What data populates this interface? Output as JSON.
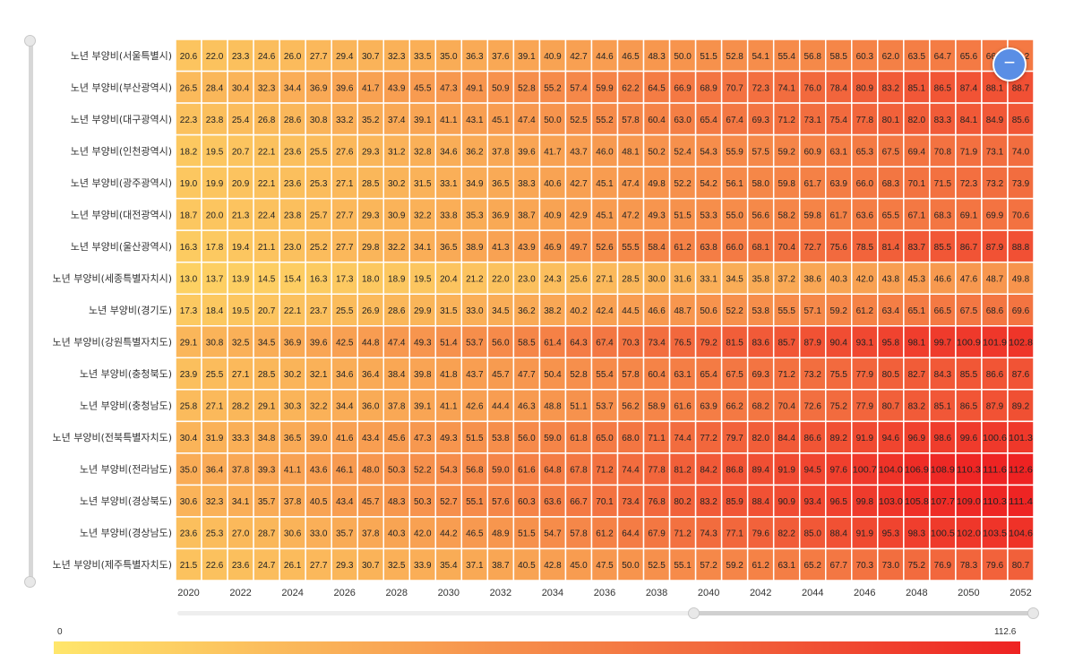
{
  "chart_data": {
    "type": "heatmap",
    "title": "",
    "years": [
      2020,
      2021,
      2022,
      2023,
      2024,
      2025,
      2026,
      2027,
      2028,
      2029,
      2030,
      2031,
      2032,
      2033,
      2034,
      2035,
      2036,
      2037,
      2038,
      2039,
      2040,
      2041,
      2042,
      2043,
      2044,
      2045,
      2046,
      2047,
      2048,
      2049,
      2050,
      2051,
      2052
    ],
    "x_tick_labels": [
      "2020",
      "2022",
      "2024",
      "2026",
      "2028",
      "2030",
      "2032",
      "2034",
      "2036",
      "2038",
      "2040",
      "2042",
      "2044",
      "2046",
      "2048",
      "2050",
      "2052"
    ],
    "rows": [
      {
        "name": "노년 부양비(서울특별시)",
        "values": [
          20.6,
          22.0,
          23.3,
          24.6,
          26.0,
          27.7,
          29.4,
          30.7,
          32.3,
          33.5,
          35.0,
          36.3,
          37.6,
          39.1,
          40.9,
          42.7,
          44.6,
          46.5,
          48.3,
          50.0,
          51.5,
          52.8,
          54.1,
          55.4,
          56.8,
          58.5,
          60.3,
          62.0,
          63.5,
          64.7,
          65.6,
          66.2,
          66.2
        ]
      },
      {
        "name": "노년 부양비(부산광역시)",
        "values": [
          26.5,
          28.4,
          30.4,
          32.3,
          34.4,
          36.9,
          39.6,
          41.7,
          43.9,
          45.5,
          47.3,
          49.1,
          50.9,
          52.8,
          55.2,
          57.4,
          59.9,
          62.2,
          64.5,
          66.9,
          68.9,
          70.7,
          72.3,
          74.1,
          76.0,
          78.4,
          80.9,
          83.2,
          85.1,
          86.5,
          87.4,
          88.1,
          88.7
        ]
      },
      {
        "name": "노년 부양비(대구광역시)",
        "values": [
          22.3,
          23.8,
          25.4,
          26.8,
          28.6,
          30.8,
          33.2,
          35.2,
          37.4,
          39.1,
          41.1,
          43.1,
          45.1,
          47.4,
          50.0,
          52.5,
          55.2,
          57.8,
          60.4,
          63.0,
          65.4,
          67.4,
          69.3,
          71.2,
          73.1,
          75.4,
          77.8,
          80.1,
          82.0,
          83.3,
          84.1,
          84.9,
          85.6
        ]
      },
      {
        "name": "노년 부양비(인천광역시)",
        "values": [
          18.2,
          19.5,
          20.7,
          22.1,
          23.6,
          25.5,
          27.6,
          29.3,
          31.2,
          32.8,
          34.6,
          36.2,
          37.8,
          39.6,
          41.7,
          43.7,
          46.0,
          48.1,
          50.2,
          52.4,
          54.3,
          55.9,
          57.5,
          59.2,
          60.9,
          63.1,
          65.3,
          67.5,
          69.4,
          70.8,
          71.9,
          73.1,
          74.0
        ]
      },
      {
        "name": "노년 부양비(광주광역시)",
        "values": [
          19.0,
          19.9,
          20.9,
          22.1,
          23.6,
          25.3,
          27.1,
          28.5,
          30.2,
          31.5,
          33.1,
          34.9,
          36.5,
          38.3,
          40.6,
          42.7,
          45.1,
          47.4,
          49.8,
          52.2,
          54.2,
          56.1,
          58.0,
          59.8,
          61.7,
          63.9,
          66.0,
          68.3,
          70.1,
          71.5,
          72.3,
          73.2,
          73.9
        ]
      },
      {
        "name": "노년 부양비(대전광역시)",
        "values": [
          18.7,
          20.0,
          21.3,
          22.4,
          23.8,
          25.7,
          27.7,
          29.3,
          30.9,
          32.2,
          33.8,
          35.3,
          36.9,
          38.7,
          40.9,
          42.9,
          45.1,
          47.2,
          49.3,
          51.5,
          53.3,
          55.0,
          56.6,
          58.2,
          59.8,
          61.7,
          63.6,
          65.5,
          67.1,
          68.3,
          69.1,
          69.9,
          70.6
        ]
      },
      {
        "name": "노년 부양비(울산광역시)",
        "values": [
          16.3,
          17.8,
          19.4,
          21.1,
          23.0,
          25.2,
          27.7,
          29.8,
          32.2,
          34.1,
          36.5,
          38.9,
          41.3,
          43.9,
          46.9,
          49.7,
          52.6,
          55.5,
          58.4,
          61.2,
          63.8,
          66.0,
          68.1,
          70.4,
          72.7,
          75.6,
          78.5,
          81.4,
          83.7,
          85.5,
          86.7,
          87.9,
          88.8
        ]
      },
      {
        "name": "노년 부양비(세종특별자치시)",
        "values": [
          13.0,
          13.7,
          13.9,
          14.5,
          15.4,
          16.3,
          17.3,
          18.0,
          18.9,
          19.5,
          20.4,
          21.2,
          22.0,
          23.0,
          24.3,
          25.6,
          27.1,
          28.5,
          30.0,
          31.6,
          33.1,
          34.5,
          35.8,
          37.2,
          38.6,
          40.3,
          42.0,
          43.8,
          45.3,
          46.6,
          47.6,
          48.7,
          49.8
        ]
      },
      {
        "name": "노년 부양비(경기도)",
        "values": [
          17.3,
          18.4,
          19.5,
          20.7,
          22.1,
          23.7,
          25.5,
          26.9,
          28.6,
          29.9,
          31.5,
          33.0,
          34.5,
          36.2,
          38.2,
          40.2,
          42.4,
          44.5,
          46.6,
          48.7,
          50.6,
          52.2,
          53.8,
          55.5,
          57.1,
          59.2,
          61.2,
          63.4,
          65.1,
          66.5,
          67.5,
          68.6,
          69.6
        ]
      },
      {
        "name": "노년 부양비(강원특별자치도)",
        "values": [
          29.1,
          30.8,
          32.5,
          34.5,
          36.9,
          39.6,
          42.5,
          44.8,
          47.4,
          49.3,
          51.4,
          53.7,
          56.0,
          58.5,
          61.4,
          64.3,
          67.4,
          70.3,
          73.4,
          76.5,
          79.2,
          81.5,
          83.6,
          85.7,
          87.9,
          90.4,
          93.1,
          95.8,
          98.1,
          99.7,
          100.9,
          101.9,
          102.8
        ]
      },
      {
        "name": "노년 부양비(충청북도)",
        "values": [
          23.9,
          25.5,
          27.1,
          28.5,
          30.2,
          32.1,
          34.6,
          36.4,
          38.4,
          39.8,
          41.8,
          43.7,
          45.7,
          47.7,
          50.4,
          52.8,
          55.4,
          57.8,
          60.4,
          63.1,
          65.4,
          67.5,
          69.3,
          71.2,
          73.2,
          75.5,
          77.9,
          80.5,
          82.7,
          84.3,
          85.5,
          86.6,
          87.6
        ]
      },
      {
        "name": "노년 부양비(충청남도)",
        "values": [
          25.8,
          27.1,
          28.2,
          29.1,
          30.3,
          32.2,
          34.4,
          36.0,
          37.8,
          39.1,
          41.1,
          42.6,
          44.4,
          46.3,
          48.8,
          51.1,
          53.7,
          56.2,
          58.9,
          61.6,
          63.9,
          66.2,
          68.2,
          70.4,
          72.6,
          75.2,
          77.9,
          80.7,
          83.2,
          85.1,
          86.5,
          87.9,
          89.2
        ]
      },
      {
        "name": "노년 부양비(전북특별자치도)",
        "values": [
          30.4,
          31.9,
          33.3,
          34.8,
          36.5,
          39.0,
          41.6,
          43.4,
          45.6,
          47.3,
          49.3,
          51.5,
          53.8,
          56.0,
          59.0,
          61.8,
          65.0,
          68.0,
          71.1,
          74.4,
          77.2,
          79.7,
          82.0,
          84.4,
          86.6,
          89.2,
          91.9,
          94.6,
          96.9,
          98.6,
          99.6,
          100.6,
          101.3
        ]
      },
      {
        "name": "노년 부양비(전라남도)",
        "values": [
          35.0,
          36.4,
          37.8,
          39.3,
          41.1,
          43.6,
          46.1,
          48.0,
          50.3,
          52.2,
          54.3,
          56.8,
          59.0,
          61.6,
          64.8,
          67.8,
          71.2,
          74.4,
          77.8,
          81.2,
          84.2,
          86.8,
          89.4,
          91.9,
          94.5,
          97.6,
          100.7,
          104.0,
          106.9,
          108.9,
          110.3,
          111.6,
          112.6
        ]
      },
      {
        "name": "노년 부양비(경상북도)",
        "values": [
          30.6,
          32.3,
          34.1,
          35.7,
          37.8,
          40.5,
          43.4,
          45.7,
          48.3,
          50.3,
          52.7,
          55.1,
          57.6,
          60.3,
          63.6,
          66.7,
          70.1,
          73.4,
          76.8,
          80.2,
          83.2,
          85.9,
          88.4,
          90.9,
          93.4,
          96.5,
          99.8,
          103.0,
          105.8,
          107.7,
          109.0,
          110.3,
          111.4
        ]
      },
      {
        "name": "노년 부양비(경상남도)",
        "values": [
          23.6,
          25.3,
          27.0,
          28.7,
          30.6,
          33.0,
          35.7,
          37.8,
          40.3,
          42.0,
          44.2,
          46.5,
          48.9,
          51.5,
          54.7,
          57.8,
          61.2,
          64.4,
          67.9,
          71.2,
          74.3,
          77.1,
          79.6,
          82.2,
          85.0,
          88.4,
          91.9,
          95.3,
          98.3,
          100.5,
          102.0,
          103.5,
          104.6
        ]
      },
      {
        "name": "노년 부양비(제주특별자치도)",
        "values": [
          21.5,
          22.6,
          23.6,
          24.7,
          26.1,
          27.7,
          29.3,
          30.7,
          32.5,
          33.9,
          35.4,
          37.1,
          38.7,
          40.5,
          42.8,
          45.0,
          47.5,
          50.0,
          52.5,
          55.1,
          57.2,
          59.2,
          61.2,
          63.1,
          65.2,
          67.7,
          70.3,
          73.0,
          75.2,
          76.9,
          78.3,
          79.6,
          80.7
        ]
      }
    ],
    "color_scale": {
      "min": 0,
      "max": 112.6,
      "colors": [
        "#ffe66b",
        "#f9a855",
        "#f26b3e",
        "#ee2222"
      ]
    },
    "visual_map": {
      "min_label": "0",
      "max_label": "112.6"
    },
    "grid": false,
    "legend": "bottom"
  },
  "zoom_button_glyph": "−"
}
